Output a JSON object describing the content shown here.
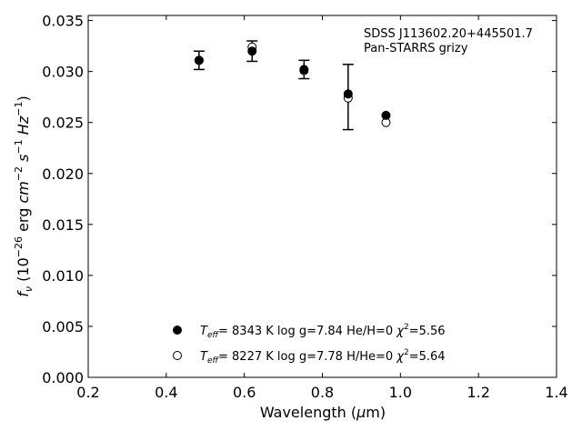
{
  "chart_data": {
    "type": "scatter",
    "annotations": [
      "SDSS J113602.20+445501.7",
      "Pan-STARRS grizy"
    ],
    "xlabel": "Wavelength (μm)",
    "ylabel": "fν (10⁻²⁶ erg cm⁻² s⁻¹ Hz⁻¹)",
    "xlim": [
      0.2,
      1.4
    ],
    "ylim": [
      0.0,
      0.0355
    ],
    "xticks": [
      0.2,
      0.4,
      0.6,
      0.8,
      1.0,
      1.2,
      1.4
    ],
    "xtick_labels": [
      "0.2",
      "0.4",
      "0.6",
      "0.8",
      "1.0",
      "1.2",
      "1.4"
    ],
    "yticks": [
      0.0,
      0.005,
      0.01,
      0.015,
      0.02,
      0.025,
      0.03,
      0.035
    ],
    "ytick_labels": [
      "0.000",
      "0.005",
      "0.010",
      "0.015",
      "0.020",
      "0.025",
      "0.030",
      "0.035"
    ],
    "grid": false,
    "legend_position": "bottom-center",
    "observed": {
      "x": [
        0.484,
        0.62,
        0.753,
        0.866,
        0.963
      ],
      "y": [
        0.0311,
        0.032,
        0.0302,
        0.0275,
        0.0257
      ],
      "err": [
        0.0009,
        0.001,
        0.0009,
        0.0032,
        0.0
      ]
    },
    "series": [
      {
        "name": "T_eff=  8343 K  log g=7.84  He/H=0  χ²=5.56",
        "marker": "filled",
        "x": [
          0.484,
          0.62,
          0.753,
          0.866,
          0.963
        ],
        "y": [
          0.0311,
          0.032,
          0.0302,
          0.0278,
          0.0257
        ]
      },
      {
        "name": "T_eff=  8227 K  log g=7.78  H/He=0  χ²=5.64",
        "marker": "open",
        "x": [
          0.484,
          0.62,
          0.753,
          0.866,
          0.963
        ],
        "y": [
          0.0311,
          0.0324,
          0.0301,
          0.0274,
          0.025
        ]
      }
    ]
  }
}
